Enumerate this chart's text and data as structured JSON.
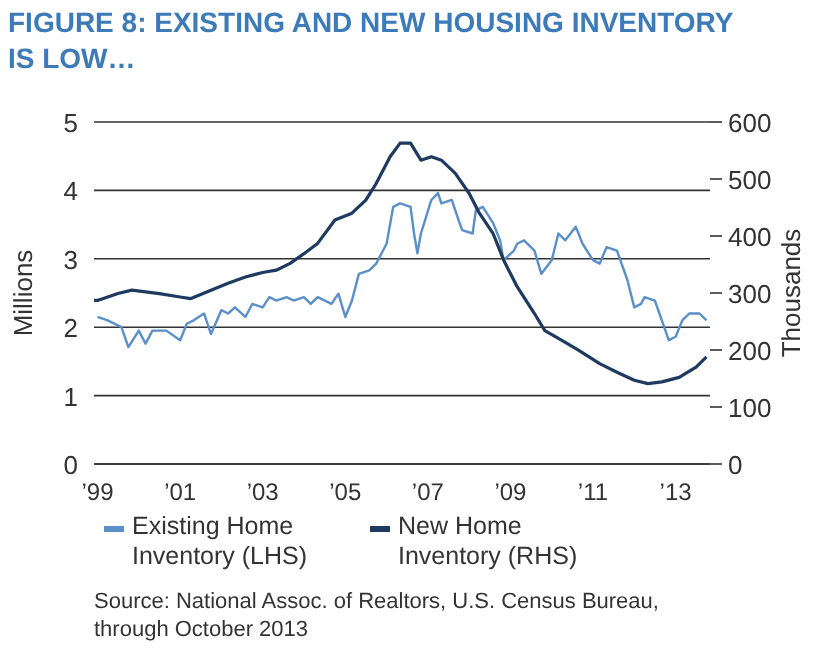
{
  "chart_data": {
    "type": "line",
    "title": "FIGURE 8: EXISTING AND NEW HOUSING INVENTORY IS LOW…",
    "ylabel": "Millions",
    "y2label": "Thousands",
    "xlim": [
      "1998-12",
      "2013-11"
    ],
    "xticks": [
      {
        "value": "1999-01",
        "label": "’99"
      },
      {
        "value": "2001-01",
        "label": "’01"
      },
      {
        "value": "2003-01",
        "label": "’03"
      },
      {
        "value": "2005-01",
        "label": "’05"
      },
      {
        "value": "2007-01",
        "label": "’07"
      },
      {
        "value": "2009-01",
        "label": "’09"
      },
      {
        "value": "2011-01",
        "label": "’11"
      },
      {
        "value": "2013-01",
        "label": "’13"
      }
    ],
    "ylim": [
      0,
      5
    ],
    "yticks": [
      0,
      1,
      2,
      3,
      4,
      5
    ],
    "y2lim": [
      0,
      600
    ],
    "y2ticks": [
      0,
      100,
      200,
      300,
      400,
      500,
      600
    ],
    "grid": "y",
    "legend": "bottom",
    "line_style": "solid",
    "series": [
      {
        "name": "Existing Home Inventory (LHS)",
        "color": "#5b8fc7",
        "x": [
          "1999-01",
          "1999-04",
          "1999-08",
          "1999-10",
          "2000-01",
          "2000-03",
          "2000-05",
          "2000-09",
          "2001-01",
          "2001-03",
          "2001-05",
          "2001-08",
          "2001-10",
          "2002-01",
          "2002-03",
          "2002-05",
          "2002-08",
          "2002-10",
          "2003-01",
          "2003-03",
          "2003-05",
          "2003-08",
          "2003-10",
          "2004-01",
          "2004-03",
          "2004-05",
          "2004-09",
          "2004-11",
          "2005-01",
          "2005-03",
          "2005-05",
          "2005-08",
          "2005-10",
          "2006-01",
          "2006-03",
          "2006-05",
          "2006-08",
          "2006-09",
          "2006-10",
          "2006-11",
          "2007-02",
          "2007-04",
          "2007-05",
          "2007-08",
          "2007-10",
          "2007-11",
          "2008-02",
          "2008-03",
          "2008-05",
          "2008-08",
          "2008-10",
          "2008-11",
          "2009-02",
          "2009-03",
          "2009-05",
          "2009-08",
          "2009-10",
          "2010-01",
          "2010-03",
          "2010-05",
          "2010-08",
          "2010-10",
          "2011-01",
          "2011-03",
          "2011-05",
          "2011-08",
          "2011-11",
          "2012-01",
          "2012-03",
          "2012-04",
          "2012-07",
          "2012-09",
          "2012-11",
          "2013-01",
          "2013-03",
          "2013-05",
          "2013-08",
          "2013-10"
        ],
        "values": [
          2.15,
          2.1,
          2.0,
          1.71,
          1.95,
          1.76,
          1.95,
          1.95,
          1.81,
          2.05,
          2.1,
          2.2,
          1.9,
          2.25,
          2.2,
          2.29,
          2.15,
          2.34,
          2.29,
          2.44,
          2.39,
          2.44,
          2.39,
          2.44,
          2.34,
          2.44,
          2.34,
          2.49,
          2.15,
          2.39,
          2.78,
          2.83,
          2.93,
          3.22,
          3.76,
          3.81,
          3.76,
          3.37,
          3.08,
          3.37,
          3.86,
          3.96,
          3.81,
          3.86,
          3.56,
          3.42,
          3.37,
          3.71,
          3.76,
          3.52,
          3.27,
          2.98,
          3.12,
          3.22,
          3.27,
          3.12,
          2.78,
          2.98,
          3.37,
          3.27,
          3.47,
          3.22,
          2.98,
          2.93,
          3.17,
          3.12,
          2.69,
          2.29,
          2.34,
          2.44,
          2.39,
          2.1,
          1.81,
          1.86,
          2.1,
          2.2,
          2.2,
          2.1
        ]
      },
      {
        "name": "New Home Inventory (RHS)",
        "color": "#1f3a60",
        "axis": "y2",
        "x": [
          "1998-12",
          "1999-01",
          "1999-07",
          "1999-11",
          "2000-07",
          "2001-01",
          "2001-04",
          "2001-10",
          "2002-03",
          "2002-08",
          "2003-01",
          "2003-05",
          "2003-09",
          "2004-01",
          "2004-05",
          "2004-10",
          "2005-03",
          "2005-07",
          "2005-10",
          "2006-02",
          "2006-05",
          "2006-08",
          "2006-11",
          "2007-02",
          "2007-05",
          "2007-09",
          "2008-01",
          "2008-04",
          "2008-08",
          "2008-11",
          "2009-03",
          "2009-08",
          "2009-11",
          "2010-04",
          "2010-09",
          "2011-03",
          "2011-08",
          "2012-01",
          "2012-05",
          "2012-09",
          "2013-02",
          "2013-07",
          "2013-10"
        ],
        "values": [
          287,
          287,
          299,
          305,
          299,
          293,
          290,
          305,
          317,
          328,
          336,
          340,
          352,
          369,
          387,
          428,
          440,
          463,
          492,
          539,
          563,
          563,
          533,
          539,
          533,
          510,
          475,
          440,
          404,
          358,
          311,
          264,
          234,
          217,
          199,
          176,
          161,
          147,
          141,
          144,
          152,
          170,
          188
        ]
      }
    ],
    "annotations": [
      "Source: National Assoc. of Realtors, U.S. Census Bureau, through October 2013"
    ]
  }
}
